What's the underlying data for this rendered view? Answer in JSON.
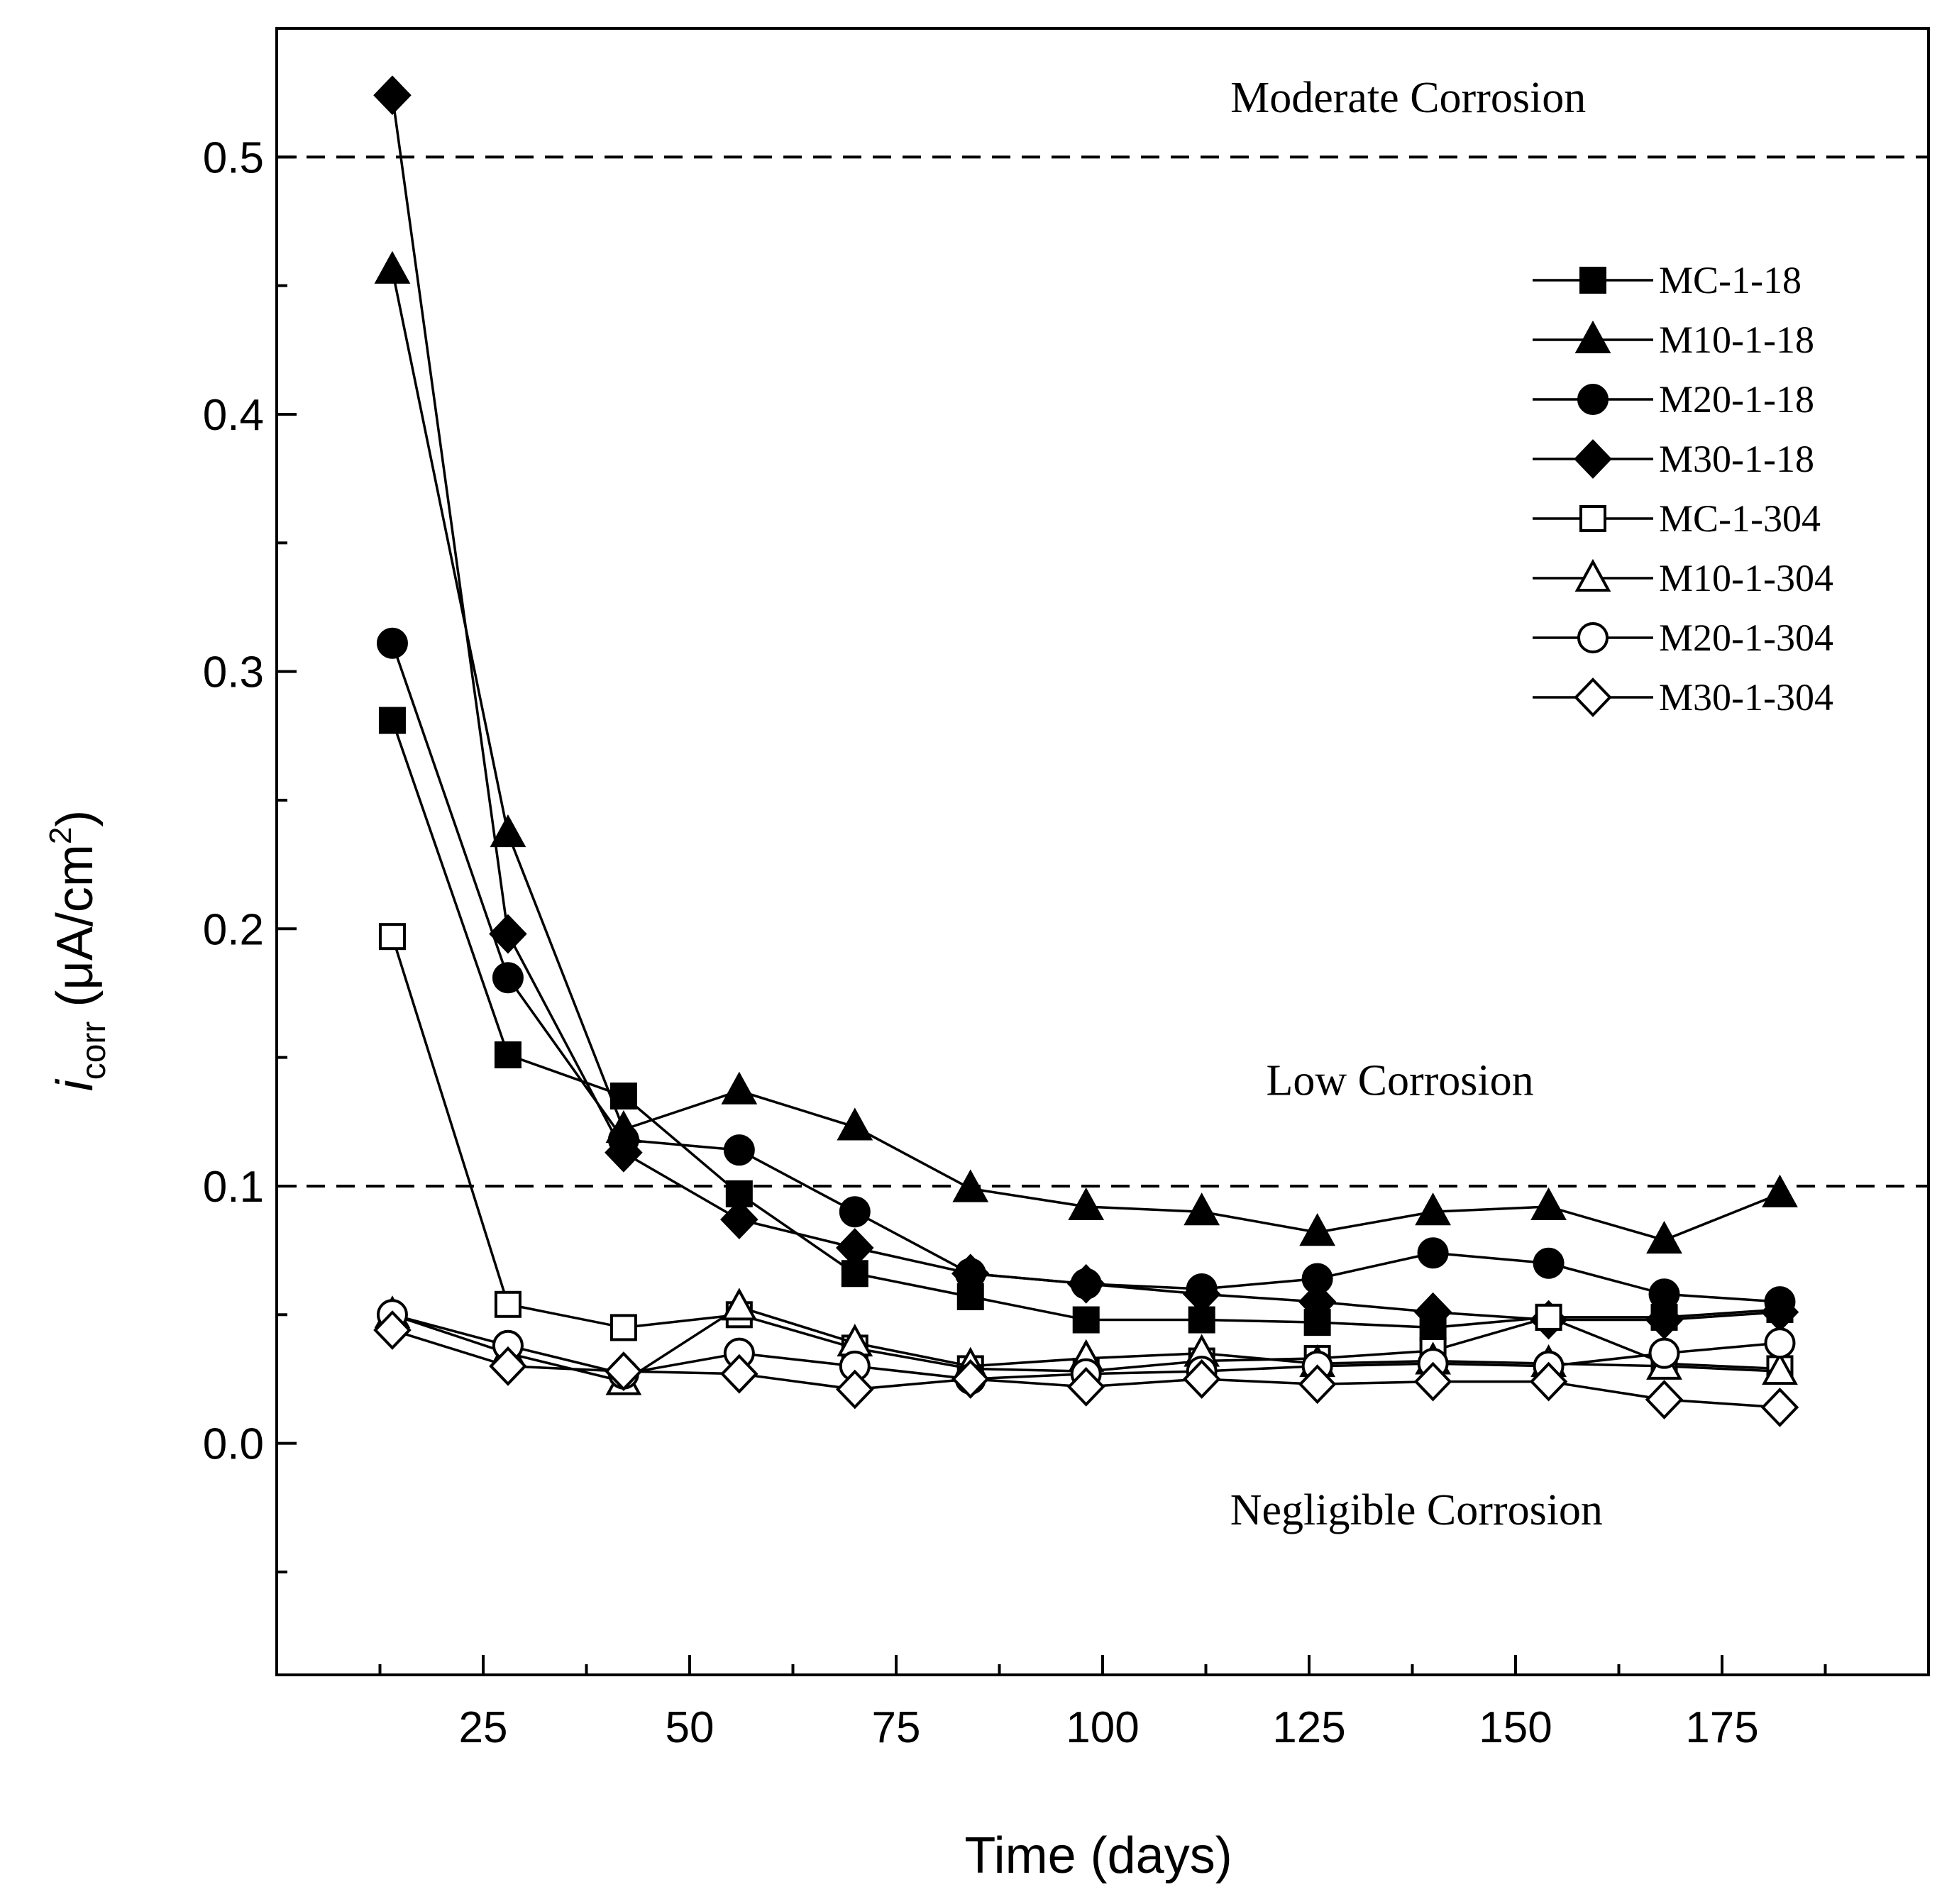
{
  "chart_data": {
    "type": "line",
    "xlabel": "Time (days)",
    "ylabel_main": "i",
    "ylabel_sub": "corr",
    "ylabel_units": " (μA/cm",
    "ylabel_sup": "2",
    "ylabel_close": ")",
    "xlim": [
      0,
      200
    ],
    "ylim": [
      -0.09,
      0.55
    ],
    "x_ticks": [
      25,
      50,
      75,
      100,
      125,
      150,
      175
    ],
    "x_minor_ticks": [
      12.5,
      37.5,
      62.5,
      87.5,
      112.5,
      137.5,
      162.5,
      187.5
    ],
    "y_ticks": [
      0.0,
      0.1,
      0.2,
      0.3,
      0.4,
      0.5
    ],
    "y_tick_labels": [
      "0.0",
      "0.1",
      "0.2",
      "0.3",
      "0.4",
      "0.5"
    ],
    "y_minor_ticks": [
      -0.05,
      0.05,
      0.15,
      0.25,
      0.35,
      0.45
    ],
    "grid": false,
    "legend_position": "top-right",
    "threshold_lines": [
      {
        "y": 0.5,
        "style": "dashed"
      },
      {
        "y": 0.1,
        "style": "dashed"
      }
    ],
    "annotations": [
      {
        "text": "Moderate Corrosion",
        "x": 137,
        "y": 0.523
      },
      {
        "text": "Low Corrosion",
        "x": 136,
        "y": 0.141
      },
      {
        "text": "Negligible Corrosion",
        "x": 138,
        "y": -0.026
      }
    ],
    "x": [
      14,
      28,
      42,
      56,
      70,
      84,
      98,
      112,
      126,
      140,
      154,
      168,
      182
    ],
    "series": [
      {
        "name": "MC-1-18",
        "marker": "square",
        "filled": true,
        "values": [
          0.281,
          0.151,
          0.135,
          0.097,
          0.066,
          0.057,
          0.048,
          0.048,
          0.047,
          0.045,
          0.049,
          0.049,
          0.052
        ]
      },
      {
        "name": "M10-1-18",
        "marker": "triangle",
        "filled": true,
        "values": [
          0.456,
          0.237,
          0.122,
          0.137,
          0.123,
          0.099,
          0.092,
          0.09,
          0.082,
          0.09,
          0.092,
          0.079,
          0.097
        ]
      },
      {
        "name": "M20-1-18",
        "marker": "circle",
        "filled": true,
        "values": [
          0.311,
          0.181,
          0.118,
          0.114,
          0.09,
          0.066,
          0.062,
          0.06,
          0.064,
          0.074,
          0.07,
          0.058,
          0.055
        ]
      },
      {
        "name": "M30-1-18",
        "marker": "diamond",
        "filled": true,
        "values": [
          0.524,
          0.198,
          0.113,
          0.087,
          0.076,
          0.066,
          0.062,
          0.058,
          0.055,
          0.051,
          0.048,
          0.048,
          0.051
        ]
      },
      {
        "name": "MC-1-304",
        "marker": "square",
        "filled": false,
        "values": [
          0.197,
          0.054,
          0.045,
          0.05,
          0.037,
          0.029,
          0.028,
          0.032,
          0.033,
          0.036,
          0.049,
          0.031,
          0.029
        ]
      },
      {
        "name": "M10-1-304",
        "marker": "triangle",
        "filled": false,
        "values": [
          0.05,
          0.035,
          0.024,
          0.053,
          0.039,
          0.03,
          0.033,
          0.035,
          0.031,
          0.032,
          0.031,
          0.03,
          0.028
        ]
      },
      {
        "name": "M20-1-304",
        "marker": "circle",
        "filled": false,
        "values": [
          0.05,
          0.038,
          0.027,
          0.035,
          0.03,
          0.025,
          0.027,
          0.028,
          0.03,
          0.031,
          0.03,
          0.035,
          0.039
        ]
      },
      {
        "name": "M30-1-304",
        "marker": "diamond",
        "filled": false,
        "values": [
          0.044,
          0.03,
          0.028,
          0.027,
          0.021,
          0.025,
          0.022,
          0.025,
          0.023,
          0.024,
          0.024,
          0.017,
          0.014
        ]
      }
    ],
    "colors": {
      "ink": "#000000",
      "background": "#ffffff"
    }
  }
}
